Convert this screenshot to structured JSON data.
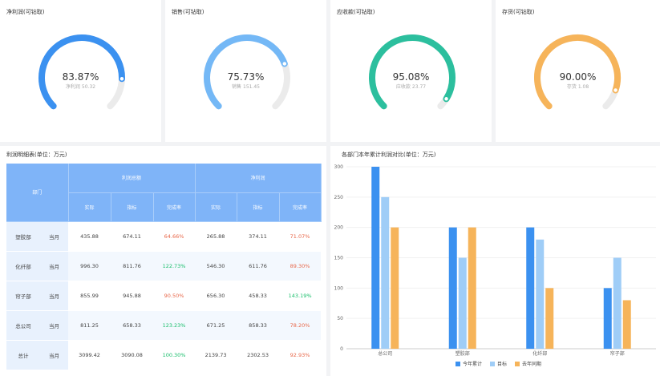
{
  "gauges": [
    {
      "title": "净利润(可钻取)",
      "percent": "83.87%",
      "sub_label": "净利润",
      "sub_value": "50.32",
      "fraction": 0.8387,
      "color": "#3b91f0"
    },
    {
      "title": "销售(可钻取)",
      "percent": "75.73%",
      "sub_label": "销售",
      "sub_value": "151.45",
      "fraction": 0.7573,
      "color": "#74b8f6"
    },
    {
      "title": "应收款(可钻取)",
      "percent": "95.08%",
      "sub_label": "应收款",
      "sub_value": "23.77",
      "fraction": 0.9508,
      "color": "#2cbf9e"
    },
    {
      "title": "存货(可钻取)",
      "percent": "90.00%",
      "sub_label": "存货",
      "sub_value": "1.08",
      "fraction": 0.9,
      "color": "#f6b45a"
    }
  ],
  "table": {
    "title": "利润明细表(单位：万元)",
    "dept_header": "部门",
    "group_headers": [
      "利润总额",
      "净利润"
    ],
    "sub_headers": [
      "实际",
      "指标",
      "完成率",
      "实际",
      "指标",
      "完成率"
    ],
    "rows": [
      {
        "dept": "塑胶部",
        "period": "当月",
        "v": [
          "435.88",
          "674.11",
          "64.66%",
          "265.88",
          "374.11",
          "71.07%"
        ],
        "s": [
          "",
          "",
          "red",
          "",
          "",
          "red"
        ]
      },
      {
        "dept": "化纤部",
        "period": "当月",
        "v": [
          "996.30",
          "811.76",
          "122.73%",
          "546.30",
          "611.76",
          "89.30%"
        ],
        "s": [
          "",
          "",
          "green",
          "",
          "",
          "red"
        ]
      },
      {
        "dept": "帘子部",
        "period": "当月",
        "v": [
          "855.99",
          "945.88",
          "90.50%",
          "656.30",
          "458.33",
          "143.19%"
        ],
        "s": [
          "",
          "",
          "red",
          "",
          "",
          "green"
        ]
      },
      {
        "dept": "总公司",
        "period": "当月",
        "v": [
          "811.25",
          "658.33",
          "123.23%",
          "671.25",
          "858.33",
          "78.20%"
        ],
        "s": [
          "",
          "",
          "green",
          "",
          "",
          "red"
        ]
      },
      {
        "dept": "总计",
        "period": "当月",
        "v": [
          "3099.42",
          "3090.08",
          "100.30%",
          "2139.73",
          "2302.53",
          "92.93%"
        ],
        "s": [
          "",
          "",
          "green",
          "",
          "",
          "red"
        ]
      }
    ]
  },
  "chart_data": {
    "type": "bar",
    "title": "各部门本年累计利润对比(单位：万元)",
    "categories": [
      "总公司",
      "塑胶部",
      "化纤部",
      "帘子部"
    ],
    "series": [
      {
        "name": "今年累计",
        "values": [
          300,
          200,
          200,
          100
        ],
        "color": "#3b91f0"
      },
      {
        "name": "目标",
        "values": [
          250,
          150,
          180,
          150
        ],
        "color": "#9fcdf7"
      },
      {
        "name": "去年同期",
        "values": [
          200,
          200,
          100,
          80
        ],
        "color": "#f6b45a"
      }
    ],
    "ylim": [
      0,
      300
    ],
    "yticks": [
      "0",
      "50",
      "100",
      "150",
      "200",
      "250",
      "300"
    ]
  }
}
